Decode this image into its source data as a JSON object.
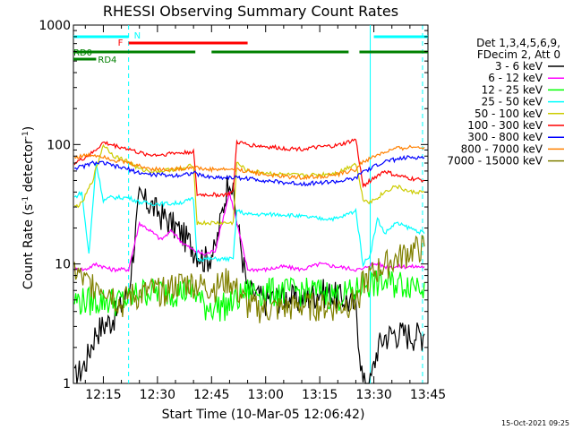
{
  "chart_data": {
    "type": "line",
    "title": "RHESSI Observing Summary Count Rates",
    "xlabel": "Start Time (10-Mar-05 12:06:42)",
    "ylabel_prefix": "Count Rate (s",
    "ylabel_sup1": "-1",
    "ylabel_mid": " detector",
    "ylabel_sup2": "-1",
    "ylabel_suffix": ")",
    "yscale": "log",
    "ylim": [
      1,
      1000
    ],
    "xlim_minutes": [
      6.7,
      105
    ],
    "x_ticks": [
      {
        "label": "12:15",
        "t": 15
      },
      {
        "label": "12:30",
        "t": 30
      },
      {
        "label": "12:45",
        "t": 45
      },
      {
        "label": "13:00",
        "t": 60
      },
      {
        "label": "13:15",
        "t": 75
      },
      {
        "label": "13:30",
        "t": 90
      },
      {
        "label": "13:45",
        "t": 105
      }
    ],
    "y_ticks": [
      {
        "label": "1",
        "v": 1
      },
      {
        "label": "10",
        "v": 10
      },
      {
        "label": "100",
        "v": 100
      },
      {
        "label": "1000",
        "v": 1000
      }
    ],
    "legend": {
      "header": [
        "Det 1,3,4,5,6,9,",
        "FDecim 2, Att 0"
      ],
      "placement": "right"
    },
    "series": [
      {
        "name": "3 - 6 keV",
        "color": "#000000",
        "x": [
          7,
          10,
          13,
          17,
          20,
          22,
          25,
          28,
          31,
          34,
          37,
          40,
          43,
          46,
          50,
          55,
          60,
          65,
          70,
          75,
          80,
          85,
          87,
          89,
          91,
          93,
          96,
          100,
          104
        ],
        "y": [
          1.1,
          1.5,
          2.8,
          3.4,
          4.5,
          6,
          36,
          32,
          26,
          22,
          18,
          14,
          11,
          13,
          60,
          6,
          5,
          5.5,
          5,
          6,
          5.5,
          4.5,
          1.0,
          1.0,
          2.0,
          2.5,
          2.7,
          2.6,
          2.6
        ]
      },
      {
        "name": "6 - 12 keV",
        "color": "#ff00ff",
        "x": [
          7,
          10,
          13,
          17,
          20,
          22,
          25,
          28,
          31,
          34,
          37,
          40,
          43,
          46,
          50,
          55,
          60,
          65,
          70,
          75,
          80,
          85,
          87,
          89,
          91,
          93,
          96,
          100,
          104
        ],
        "y": [
          9,
          9,
          10,
          9,
          9,
          9,
          22,
          19,
          16,
          19,
          15,
          13,
          12,
          13,
          40,
          9,
          9,
          9.5,
          9,
          10,
          9.5,
          9,
          9,
          10,
          10,
          9.5,
          9.5,
          9.5,
          9.5
        ]
      },
      {
        "name": "12 - 25 keV",
        "color": "#00ff00",
        "x": [
          7,
          10,
          13,
          17,
          20,
          22,
          25,
          28,
          31,
          34,
          37,
          40,
          43,
          46,
          50,
          55,
          60,
          65,
          70,
          75,
          80,
          85,
          87,
          89,
          91,
          93,
          96,
          100,
          104
        ],
        "y": [
          5,
          5,
          5,
          5,
          5,
          5,
          6,
          6,
          6,
          6,
          6,
          6,
          4.5,
          4.5,
          4.6,
          6,
          6,
          6,
          6,
          6,
          5.5,
          6,
          7,
          7,
          7,
          7,
          7,
          7,
          7
        ]
      },
      {
        "name": "25 - 50 keV",
        "color": "#00ffff",
        "x": [
          7,
          9,
          11,
          13,
          15,
          17,
          19,
          22,
          25,
          28,
          31,
          34,
          37,
          40,
          41,
          43,
          45,
          48,
          51,
          52,
          55,
          60,
          65,
          70,
          75,
          80,
          85,
          87,
          89,
          91,
          93,
          96,
          100,
          104
        ],
        "y": [
          36,
          40,
          12,
          70,
          34,
          36,
          36,
          36,
          33,
          32,
          32,
          32,
          33,
          35,
          11,
          11,
          11,
          11,
          11,
          28,
          26,
          26,
          26,
          25,
          24,
          24,
          28,
          10,
          12,
          24,
          18,
          22,
          20,
          18
        ]
      },
      {
        "name": "50 - 100 keV",
        "color": "#cccc00",
        "x": [
          7,
          9,
          12,
          15,
          18,
          22,
          25,
          28,
          31,
          34,
          37,
          40,
          41,
          43,
          46,
          49,
          51,
          52,
          55,
          60,
          65,
          70,
          75,
          80,
          85,
          87,
          89,
          91,
          93,
          96,
          100,
          104
        ],
        "y": [
          30,
          32,
          50,
          100,
          80,
          72,
          62,
          60,
          60,
          62,
          62,
          68,
          22,
          22,
          22,
          22,
          22,
          70,
          60,
          58,
          56,
          55,
          56,
          58,
          70,
          35,
          33,
          36,
          40,
          45,
          40,
          40
        ]
      },
      {
        "name": "100 - 300 keV",
        "color": "#ff0000",
        "x": [
          7,
          9,
          12,
          15,
          18,
          22,
          25,
          28,
          31,
          34,
          37,
          40,
          41,
          43,
          46,
          49,
          51,
          52,
          55,
          60,
          65,
          70,
          75,
          80,
          85,
          87,
          89,
          91,
          93,
          96,
          100,
          104
        ],
        "y": [
          70,
          75,
          85,
          104,
          98,
          92,
          85,
          82,
          82,
          85,
          85,
          88,
          38,
          38,
          38,
          38,
          40,
          105,
          100,
          96,
          93,
          92,
          95,
          98,
          110,
          45,
          50,
          55,
          60,
          55,
          52,
          50
        ]
      },
      {
        "name": "300 - 800 keV",
        "color": "#0000ff",
        "x": [
          7,
          9,
          12,
          15,
          18,
          22,
          25,
          28,
          31,
          34,
          37,
          40,
          43,
          46,
          49,
          51,
          55,
          60,
          65,
          70,
          75,
          80,
          85,
          87,
          89,
          91,
          93,
          96,
          100,
          104
        ],
        "y": [
          64,
          65,
          70,
          70,
          66,
          62,
          58,
          56,
          56,
          55,
          56,
          58,
          54,
          53,
          53,
          53,
          52,
          50,
          48,
          47,
          48,
          49,
          52,
          60,
          62,
          68,
          72,
          75,
          78,
          78
        ]
      },
      {
        "name": "800 - 7000 keV",
        "color": "#ff8000",
        "x": [
          7,
          9,
          12,
          15,
          18,
          22,
          25,
          28,
          31,
          34,
          37,
          40,
          43,
          46,
          49,
          51,
          55,
          60,
          65,
          70,
          75,
          80,
          85,
          87,
          89,
          91,
          93,
          96,
          100,
          104
        ],
        "y": [
          78,
          80,
          82,
          80,
          74,
          70,
          66,
          63,
          62,
          62,
          63,
          65,
          62,
          62,
          62,
          62,
          60,
          56,
          54,
          53,
          54,
          56,
          62,
          72,
          76,
          82,
          86,
          92,
          95,
          95
        ]
      },
      {
        "name": "7000 - 15000 keV",
        "color": "#808000",
        "x": [
          7,
          10,
          13,
          17,
          20,
          22,
          25,
          28,
          31,
          34,
          37,
          40,
          43,
          46,
          50,
          55,
          60,
          65,
          70,
          75,
          80,
          85,
          87,
          89,
          91,
          93,
          96,
          100,
          104
        ],
        "y": [
          9,
          7,
          7,
          6,
          4.5,
          5.5,
          5.5,
          6,
          6,
          6.5,
          7,
          7,
          6.5,
          6.5,
          7.5,
          4.5,
          4.2,
          4.3,
          4.5,
          4.5,
          4.4,
          5,
          7,
          8,
          9,
          10,
          11,
          13,
          14
        ]
      }
    ],
    "annotations": {
      "saa_flag": {
        "label": "",
        "color": "#00ffff",
        "segments": [
          [
            6.7,
            22
          ],
          [
            90,
            105
          ]
        ]
      },
      "night_flag": {
        "label": "N",
        "color": "#00ffff",
        "at": 22.5
      },
      "flare_flag": {
        "label": "F",
        "color": "#ff0000",
        "segments": [
          [
            22,
            55
          ]
        ]
      },
      "rd0_flag": {
        "label": "RD0",
        "color": "#008000",
        "segments": [
          [
            6.7,
            40.5
          ],
          [
            45,
            83
          ],
          [
            86,
            105
          ]
        ]
      },
      "rd4_flag": {
        "label": "RD4",
        "color": "#008000",
        "segments": [
          [
            6.7,
            13
          ]
        ]
      },
      "boundaries": [
        {
          "t": 22,
          "color": "#00ffff",
          "dashed": true
        },
        {
          "t": 89,
          "color": "#00ffff",
          "dashed": false
        },
        {
          "t": 103.5,
          "color": "#00ffff",
          "dashed": true
        }
      ]
    }
  },
  "footer": {
    "timestamp": "15-Oct-2021 09:25"
  }
}
